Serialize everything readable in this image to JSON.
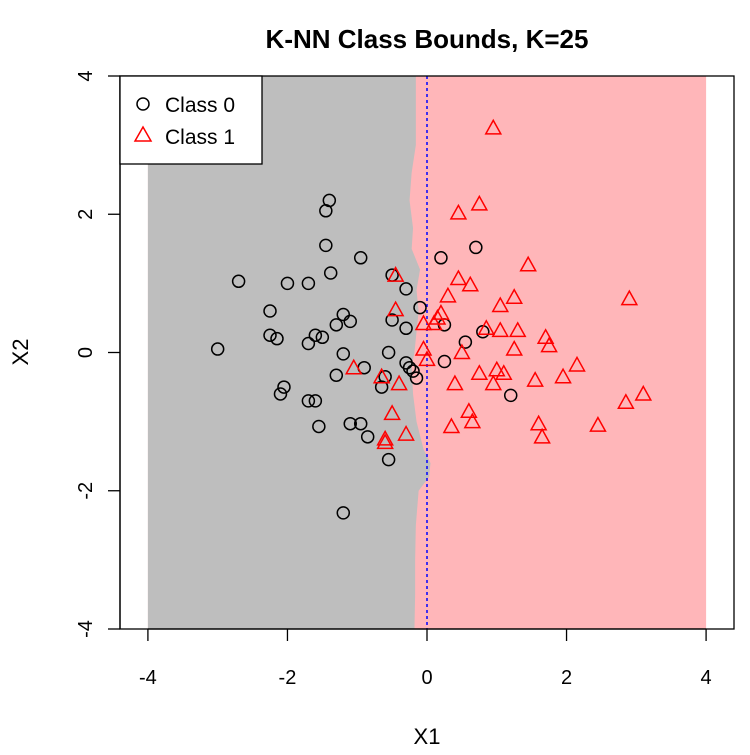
{
  "colors": {
    "class0_region": "#bebebe",
    "class1_region": "#ffb6b9",
    "class0_marker": "#000000",
    "class1_marker": "#ff0000",
    "divider": "#0000ff",
    "background": "#ffffff"
  },
  "chart_data": {
    "type": "scatter",
    "title": "K-NN Class Bounds, K=25",
    "xlabel": "X1",
    "ylabel": "X2",
    "xlim": [
      -4.4,
      4.4
    ],
    "ylim": [
      -4.0,
      4.0
    ],
    "xticks": [
      -4,
      -2,
      0,
      2,
      4
    ],
    "yticks": [
      -4,
      -2,
      0,
      2,
      4
    ],
    "grid": false,
    "legend_position": "top-left",
    "regions": {
      "xrange": [
        -4,
        4
      ],
      "yrange": [
        -4,
        4
      ],
      "boundary": [
        [
          -4.0,
          -0.18
        ],
        [
          -3.5,
          -0.17
        ],
        [
          -3.0,
          -0.17
        ],
        [
          -2.5,
          -0.16
        ],
        [
          -2.0,
          -0.12
        ],
        [
          -1.8,
          0.03
        ],
        [
          -1.6,
          0.05
        ],
        [
          -1.4,
          -0.05
        ],
        [
          -1.0,
          -0.15
        ],
        [
          -0.6,
          -0.2
        ],
        [
          -0.2,
          -0.22
        ],
        [
          0.0,
          -0.18
        ],
        [
          0.3,
          -0.15
        ],
        [
          0.6,
          -0.12
        ],
        [
          0.9,
          -0.15
        ],
        [
          1.2,
          -0.1
        ],
        [
          1.5,
          -0.22
        ],
        [
          1.8,
          -0.2
        ],
        [
          2.2,
          -0.25
        ],
        [
          2.6,
          -0.22
        ],
        [
          3.0,
          -0.16
        ],
        [
          3.5,
          -0.16
        ],
        [
          4.0,
          -0.16
        ]
      ]
    },
    "divider_x": 0,
    "series": [
      {
        "name": "Class 0",
        "marker": "circle",
        "points": [
          [
            -1.4,
            2.2
          ],
          [
            -1.45,
            2.05
          ],
          [
            -1.45,
            1.55
          ],
          [
            -0.95,
            1.37
          ],
          [
            -1.38,
            1.15
          ],
          [
            -2.7,
            1.03
          ],
          [
            -2.0,
            1.0
          ],
          [
            -1.7,
            1.0
          ],
          [
            -2.25,
            0.6
          ],
          [
            -1.2,
            0.55
          ],
          [
            -1.1,
            0.45
          ],
          [
            -1.3,
            0.4
          ],
          [
            -0.5,
            1.12
          ],
          [
            -0.3,
            0.92
          ],
          [
            -0.1,
            0.65
          ],
          [
            -0.5,
            0.47
          ],
          [
            -0.3,
            0.35
          ],
          [
            -1.6,
            0.25
          ],
          [
            -1.5,
            0.22
          ],
          [
            -2.25,
            0.25
          ],
          [
            -2.15,
            0.2
          ],
          [
            -1.7,
            0.13
          ],
          [
            -3.0,
            0.05
          ],
          [
            -1.2,
            -0.02
          ],
          [
            -0.55,
            0.0
          ],
          [
            -0.9,
            -0.22
          ],
          [
            -1.3,
            -0.33
          ],
          [
            -0.25,
            -0.22
          ],
          [
            -0.2,
            -0.27
          ],
          [
            -0.15,
            -0.37
          ],
          [
            -0.6,
            -0.35
          ],
          [
            -0.3,
            -0.15
          ],
          [
            -0.65,
            -0.5
          ],
          [
            -2.05,
            -0.5
          ],
          [
            -2.1,
            -0.6
          ],
          [
            -1.7,
            -0.7
          ],
          [
            -1.6,
            -0.7
          ],
          [
            -1.55,
            -1.07
          ],
          [
            -1.1,
            -1.03
          ],
          [
            -0.95,
            -1.03
          ],
          [
            -0.85,
            -1.22
          ],
          [
            -0.55,
            -1.55
          ],
          [
            -1.2,
            -2.32
          ],
          [
            0.2,
            1.37
          ],
          [
            0.7,
            1.52
          ],
          [
            0.25,
            0.4
          ],
          [
            0.55,
            0.15
          ],
          [
            0.8,
            0.3
          ],
          [
            0.25,
            -0.13
          ],
          [
            1.2,
            -0.62
          ]
        ]
      },
      {
        "name": "Class 1",
        "marker": "triangle",
        "points": [
          [
            0.95,
            3.25
          ],
          [
            0.75,
            2.15
          ],
          [
            0.45,
            2.02
          ],
          [
            1.45,
            1.27
          ],
          [
            0.45,
            1.07
          ],
          [
            0.62,
            0.98
          ],
          [
            -0.45,
            1.12
          ],
          [
            1.25,
            0.8
          ],
          [
            1.05,
            0.68
          ],
          [
            0.3,
            0.82
          ],
          [
            -0.45,
            0.62
          ],
          [
            0.2,
            0.57
          ],
          [
            0.15,
            0.5
          ],
          [
            0.1,
            0.42
          ],
          [
            -0.05,
            0.42
          ],
          [
            0.85,
            0.35
          ],
          [
            1.05,
            0.32
          ],
          [
            1.3,
            0.32
          ],
          [
            1.7,
            0.22
          ],
          [
            1.75,
            0.1
          ],
          [
            1.25,
            0.05
          ],
          [
            -0.05,
            0.05
          ],
          [
            0.5,
            0.0
          ],
          [
            0.0,
            -0.1
          ],
          [
            -1.05,
            -0.22
          ],
          [
            0.75,
            -0.3
          ],
          [
            1.0,
            -0.25
          ],
          [
            1.1,
            -0.3
          ],
          [
            0.95,
            -0.45
          ],
          [
            2.15,
            -0.18
          ],
          [
            1.95,
            -0.35
          ],
          [
            1.55,
            -0.4
          ],
          [
            -0.65,
            -0.35
          ],
          [
            -0.4,
            -0.45
          ],
          [
            0.4,
            -0.45
          ],
          [
            2.9,
            0.78
          ],
          [
            3.1,
            -0.6
          ],
          [
            2.85,
            -0.72
          ],
          [
            -0.5,
            -0.88
          ],
          [
            0.6,
            -0.85
          ],
          [
            0.65,
            -1.0
          ],
          [
            0.35,
            -1.07
          ],
          [
            1.6,
            -1.03
          ],
          [
            2.45,
            -1.05
          ],
          [
            -0.3,
            -1.18
          ],
          [
            -0.6,
            -1.25
          ],
          [
            -0.6,
            -1.3
          ],
          [
            1.65,
            -1.22
          ]
        ]
      }
    ]
  }
}
